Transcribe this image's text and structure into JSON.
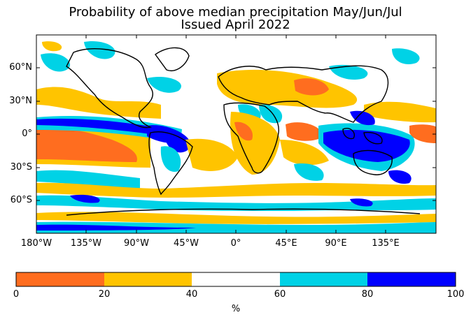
{
  "title": {
    "line1": "Probability of above median precipitation May/Jun/Jul",
    "line2": "Issued April 2022"
  },
  "map": {
    "projection": "equirectangular",
    "lat_ticks": [
      "60°N",
      "30°N",
      "0°",
      "30°S",
      "60°S"
    ],
    "lon_ticks": [
      "180°W",
      "135°W",
      "90°W",
      "45°W",
      "0°",
      "45°E",
      "90°E",
      "135°E"
    ],
    "features": [
      "coastlines",
      "country-borders"
    ]
  },
  "colorbar": {
    "ticks": [
      "0",
      "20",
      "40",
      "60",
      "80",
      "100"
    ],
    "unit": "%",
    "bins": [
      {
        "from": 0,
        "to": 20,
        "color": "#ff6d1f"
      },
      {
        "from": 20,
        "to": 40,
        "color": "#ffc400"
      },
      {
        "from": 40,
        "to": 60,
        "color": "#ffffff"
      },
      {
        "from": 60,
        "to": 80,
        "color": "#00d2e6"
      },
      {
        "from": 80,
        "to": 100,
        "color": "#0000ff"
      }
    ]
  }
}
